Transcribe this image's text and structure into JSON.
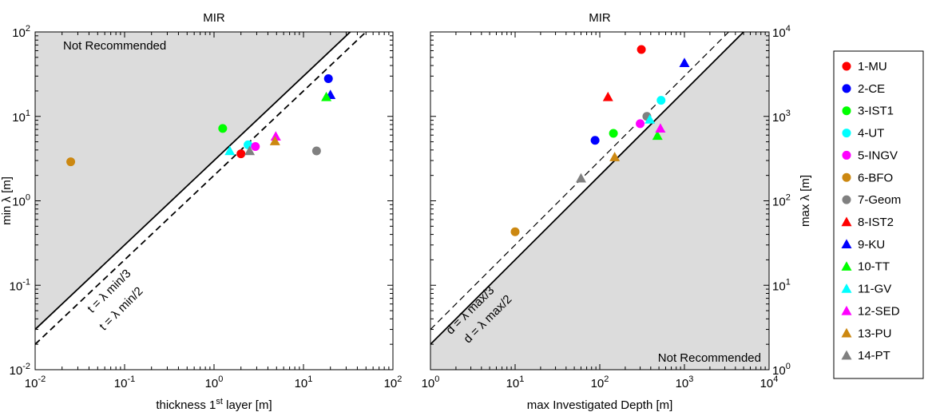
{
  "chart_data": [
    {
      "type": "scatter",
      "title": "MIR",
      "xlabel": "thickness 1",
      "xlabel_sup": "st",
      "xlabel_tail": " layer [m]",
      "ylabel": "min λ [m]",
      "xscale": "log",
      "yscale": "log",
      "xlim": [
        0.01,
        100
      ],
      "ylim": [
        0.01,
        100
      ],
      "xticks": [
        {
          "base": "10",
          "exp": "-2",
          "v": 0.01
        },
        {
          "base": "10",
          "exp": "-1",
          "v": 0.1
        },
        {
          "base": "10",
          "exp": "0",
          "v": 1
        },
        {
          "base": "10",
          "exp": "1",
          "v": 10
        },
        {
          "base": "10",
          "exp": "2",
          "v": 100
        }
      ],
      "yticks": [
        {
          "base": "10",
          "exp": "-2",
          "v": 0.01
        },
        {
          "base": "10",
          "exp": "-1",
          "v": 0.1
        },
        {
          "base": "10",
          "exp": "0",
          "v": 1
        },
        {
          "base": "10",
          "exp": "1",
          "v": 10
        },
        {
          "base": "10",
          "exp": "2",
          "v": 100
        }
      ],
      "region_label": "Not Recommended",
      "lines": [
        {
          "label": "t = λ min/3",
          "style": "solid",
          "divisor": 3
        },
        {
          "label": "t = λ min/2",
          "style": "dashed",
          "divisor": 2
        }
      ],
      "points": [
        {
          "series": "1-MU",
          "x": 2.0,
          "y": 3.6
        },
        {
          "series": "2-CE",
          "x": 19,
          "y": 28
        },
        {
          "series": "3-IST1",
          "x": 1.25,
          "y": 7.2
        },
        {
          "series": "4-UT",
          "x": 2.4,
          "y": 4.6
        },
        {
          "series": "5-INGV",
          "x": 2.9,
          "y": 4.4
        },
        {
          "series": "6-BFO",
          "x": 0.025,
          "y": 2.9
        },
        {
          "series": "7-Geom",
          "x": 14,
          "y": 3.9
        },
        {
          "series": "9-KU",
          "x": 20,
          "y": 18
        },
        {
          "series": "10-TT",
          "x": 18,
          "y": 17
        },
        {
          "series": "11-GV",
          "x": 1.5,
          "y": 3.9
        },
        {
          "series": "12-SED",
          "x": 4.9,
          "y": 5.8
        },
        {
          "series": "13-PU",
          "x": 4.8,
          "y": 5.1
        },
        {
          "series": "14-PT",
          "x": 2.5,
          "y": 3.9
        }
      ]
    },
    {
      "type": "scatter",
      "title": "MIR",
      "xlabel": "max Investigated Depth [m]",
      "ylabel": "max λ [m]",
      "xscale": "log",
      "yscale": "log",
      "xlim": [
        1,
        10000
      ],
      "ylim": [
        1,
        10000
      ],
      "xticks": [
        {
          "base": "10",
          "exp": "0",
          "v": 1
        },
        {
          "base": "10",
          "exp": "1",
          "v": 10
        },
        {
          "base": "10",
          "exp": "2",
          "v": 100
        },
        {
          "base": "10",
          "exp": "3",
          "v": 1000
        },
        {
          "base": "10",
          "exp": "4",
          "v": 10000
        }
      ],
      "yticks": [
        {
          "base": "10",
          "exp": "0",
          "v": 1
        },
        {
          "base": "10",
          "exp": "1",
          "v": 10
        },
        {
          "base": "10",
          "exp": "2",
          "v": 100
        },
        {
          "base": "10",
          "exp": "3",
          "v": 1000
        },
        {
          "base": "10",
          "exp": "4",
          "v": 10000
        }
      ],
      "region_label": "Not Recommended",
      "lines": [
        {
          "label": "d = λ max/3",
          "style": "dashed",
          "factor": 3
        },
        {
          "label": "d = λ max/2",
          "style": "solid",
          "factor": 2
        }
      ],
      "points": [
        {
          "series": "1-MU",
          "x": 310,
          "y": 6200
        },
        {
          "series": "2-CE",
          "x": 88,
          "y": 520
        },
        {
          "series": "3-IST1",
          "x": 145,
          "y": 630
        },
        {
          "series": "4-UT",
          "x": 530,
          "y": 1550
        },
        {
          "series": "5-INGV",
          "x": 300,
          "y": 820
        },
        {
          "series": "6-BFO",
          "x": 10,
          "y": 43
        },
        {
          "series": "7-Geom",
          "x": 360,
          "y": 1000
        },
        {
          "series": "8-IST2",
          "x": 125,
          "y": 1700
        },
        {
          "series": "9-KU",
          "x": 1000,
          "y": 4300
        },
        {
          "series": "10-TT",
          "x": 480,
          "y": 590
        },
        {
          "series": "11-GV",
          "x": 390,
          "y": 920
        },
        {
          "series": "12-SED",
          "x": 520,
          "y": 720
        },
        {
          "series": "13-PU",
          "x": 150,
          "y": 330
        },
        {
          "series": "14-PT",
          "x": 60,
          "y": 185
        }
      ]
    }
  ],
  "legend": [
    {
      "name": "1-MU",
      "marker": "circle",
      "color": "#ff0000"
    },
    {
      "name": "2-CE",
      "marker": "circle",
      "color": "#0000ff"
    },
    {
      "name": "3-IST1",
      "marker": "circle",
      "color": "#00ff00"
    },
    {
      "name": "4-UT",
      "marker": "circle",
      "color": "#00ffff"
    },
    {
      "name": "5-INGV",
      "marker": "circle",
      "color": "#ff00ff"
    },
    {
      "name": "6-BFO",
      "marker": "circle",
      "color": "#cc8811"
    },
    {
      "name": "7-Geom",
      "marker": "circle",
      "color": "#808080"
    },
    {
      "name": "8-IST2",
      "marker": "triangle",
      "color": "#ff0000"
    },
    {
      "name": "9-KU",
      "marker": "triangle",
      "color": "#0000ff"
    },
    {
      "name": "10-TT",
      "marker": "triangle",
      "color": "#00ff00"
    },
    {
      "name": "11-GV",
      "marker": "triangle",
      "color": "#00ffff"
    },
    {
      "name": "12-SED",
      "marker": "triangle",
      "color": "#ff00ff"
    },
    {
      "name": "13-PU",
      "marker": "triangle",
      "color": "#cc8811"
    },
    {
      "name": "14-PT",
      "marker": "triangle",
      "color": "#808080"
    }
  ]
}
